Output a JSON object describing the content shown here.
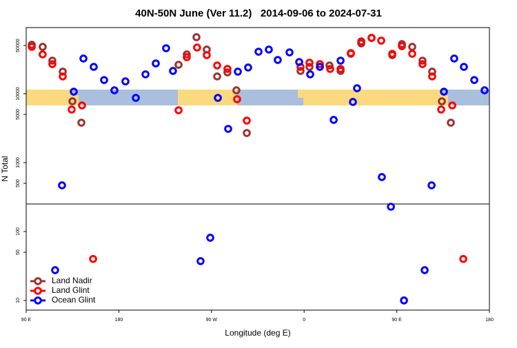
{
  "chart_data": {
    "type": "scatter",
    "title": "40N-50N June (Ver 11.2)   2014-09-06 to 2024-07-31",
    "x_label": "Longitude (deg E)",
    "y_label": "N Total",
    "log_y": true,
    "grid": false,
    "legend": "bottom-left",
    "xlim": [
      90,
      540
    ],
    "ylim": [
      7.24,
      91200
    ],
    "xticks": [
      {
        "value": 90,
        "label": "90 E"
      },
      180,
      {
        "value": 270,
        "label": "90 W"
      },
      {
        "value": 360,
        "label": "0"
      },
      {
        "value": 450,
        "label": "90 E"
      },
      {
        "value": 540,
        "label": "180"
      }
    ],
    "yticks": [
      10,
      50,
      100,
      500,
      1000,
      5000,
      10000,
      50000
    ],
    "series": [
      {
        "name": "Land Nadir",
        "color": "#993333",
        "x": [
          95.4,
          106,
          115.4,
          125.5,
          134.9,
          143.6,
          238,
          246,
          255.4,
          265.4,
          275.5,
          285.5,
          294.2,
          304.3,
          356.5,
          365.2,
          384.6,
          395.4,
          405.4,
          415.5,
          425.5,
          445.6,
          455,
          465,
          475,
          484.4,
          493.8,
          502.5
        ],
        "values": [
          51300,
          47900,
          30200,
          20900,
          7760,
          3800,
          26300,
          37200,
          66100,
          43700,
          17800,
          20400,
          11200,
          2690,
          21400,
          24500,
          25700,
          21400,
          38000,
          53700,
          64600,
          36300,
          52500,
          47900,
          30200,
          20900,
          7760,
          3800
        ]
      },
      {
        "name": "Land Glint",
        "color": "#ff0000",
        "x": [
          95.4,
          106,
          115.4,
          125.5,
          134.2,
          144.2,
          155,
          238,
          246,
          256,
          265.4,
          275.5,
          285.5,
          294.9,
          304.3,
          356.5,
          365.2,
          375.3,
          385.3,
          395.4,
          405.4,
          415.5,
          425.5,
          434.9,
          445.6,
          455,
          465,
          475,
          484.4,
          493.1,
          503.9,
          514.6
        ],
        "values": [
          47900,
          37200,
          26900,
          17800,
          5890,
          6760,
          40,
          5750,
          33900,
          46800,
          36300,
          25700,
          22900,
          8320,
          4070,
          24500,
          28200,
          26900,
          22900,
          22900,
          38900,
          57500,
          64600,
          58900,
          38000,
          49000,
          38000,
          26900,
          17800,
          5890,
          6760,
          40
        ]
      },
      {
        "name": "Ocean Glint",
        "color": "#0000ff",
        "x": [
          118.1,
          124.8,
          136.2,
          145.6,
          155.6,
          165.7,
          175.7,
          186.4,
          196.5,
          205.9,
          215.9,
          225.9,
          232.6,
          259.4,
          268.8,
          276.2,
          286.2,
          295.6,
          305.6,
          315.7,
          325.7,
          334.4,
          345.8,
          355.2,
          365.9,
          375.3,
          388.7,
          395.4,
          407.4,
          411.4,
          435.5,
          444.3,
          457,
          477.1,
          483.8,
          495.8,
          505.8,
          515.2,
          525.3,
          535.3
        ],
        "values": [
          27.5,
          468,
          10700,
          32400,
          24500,
          15800,
          11200,
          15100,
          8710,
          19100,
          27500,
          45700,
          21400,
          37.2,
          81.3,
          8710,
          3090,
          20900,
          24000,
          40700,
          43700,
          30900,
          39800,
          28800,
          19100,
          24500,
          4170,
          30200,
          7590,
          12000,
          617,
          229,
          10,
          27.5,
          468,
          10700,
          32400,
          24500,
          15800,
          11200
        ]
      }
    ]
  }
}
